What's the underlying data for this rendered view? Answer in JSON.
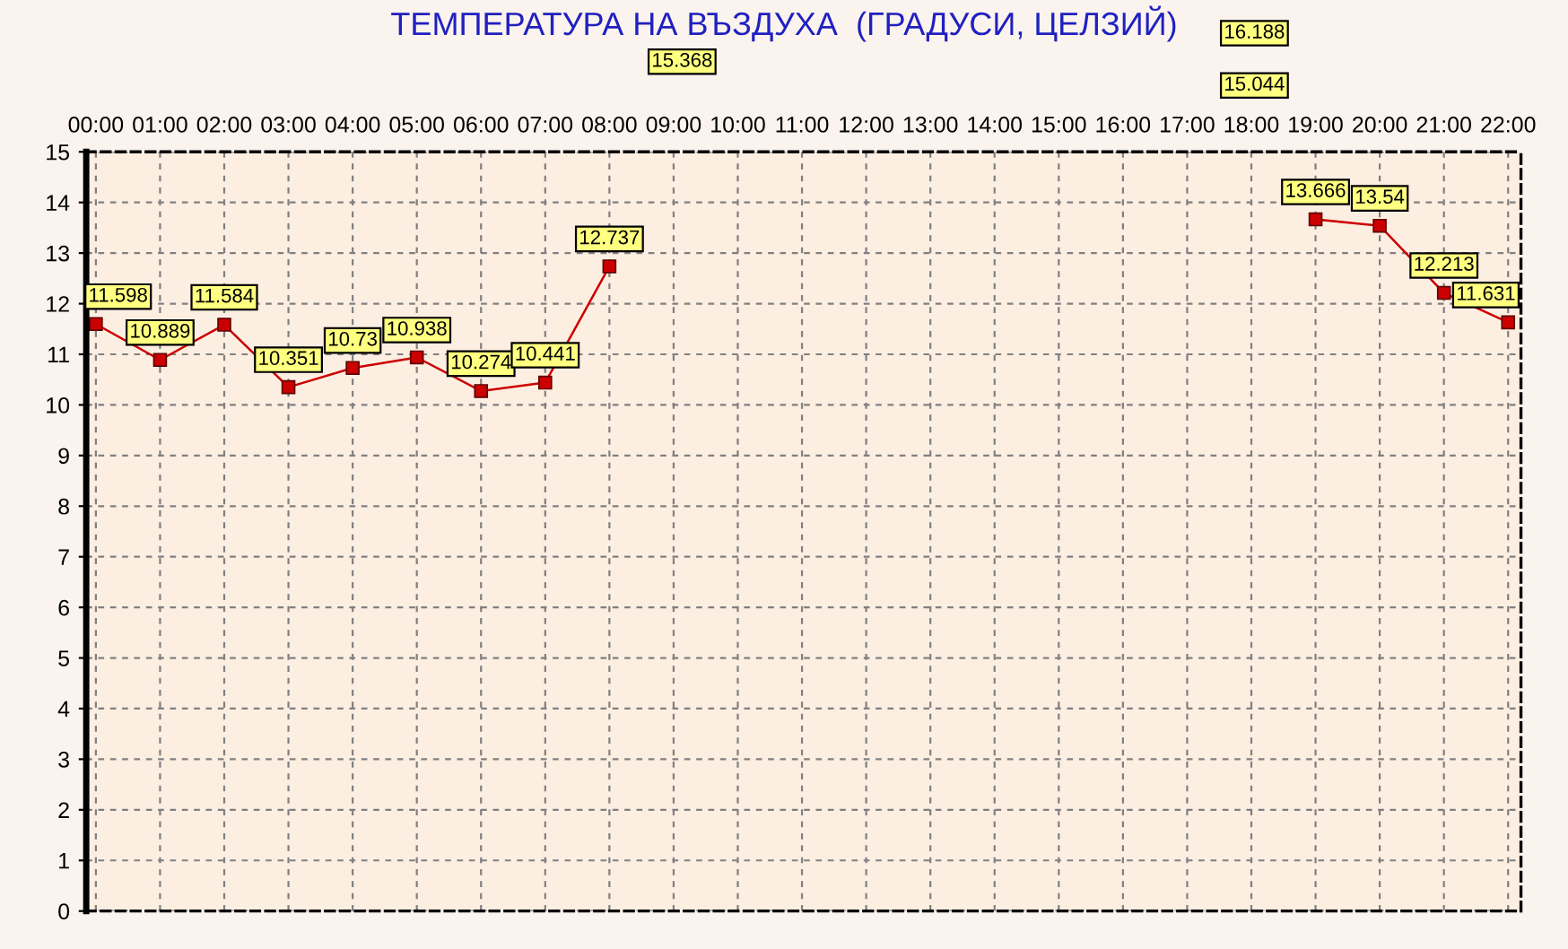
{
  "chart_data": {
    "type": "line",
    "title": "ТЕМПЕРАТУРА НА ВЪЗДУХА  (ГРАДУСИ, ЦЕЛЗИЙ)",
    "categories": [
      "00:00",
      "01:00",
      "02:00",
      "03:00",
      "04:00",
      "05:00",
      "06:00",
      "07:00",
      "08:00",
      "09:00",
      "10:00",
      "11:00",
      "12:00",
      "13:00",
      "14:00",
      "15:00",
      "16:00",
      "17:00",
      "18:00",
      "19:00",
      "20:00",
      "21:00",
      "22:00"
    ],
    "series": [
      {
        "color": "#cc0000",
        "values": [
          11.598,
          10.889,
          11.584,
          10.351,
          10.73,
          10.938,
          10.274,
          10.441,
          12.737,
          null,
          null,
          null,
          null,
          null,
          null,
          null,
          null,
          null,
          null,
          13.666,
          13.54,
          12.213,
          11.631
        ]
      }
    ],
    "annotations": [
      "15.368",
      "16.188",
      "15.044"
    ],
    "ylim": [
      0,
      15
    ],
    "yticks": [
      0,
      1,
      2,
      3,
      4,
      5,
      6,
      7,
      8,
      9,
      10,
      11,
      12,
      13,
      14,
      15
    ],
    "grid": true,
    "marker": "square",
    "line_style": "solid",
    "data_labels": true
  }
}
